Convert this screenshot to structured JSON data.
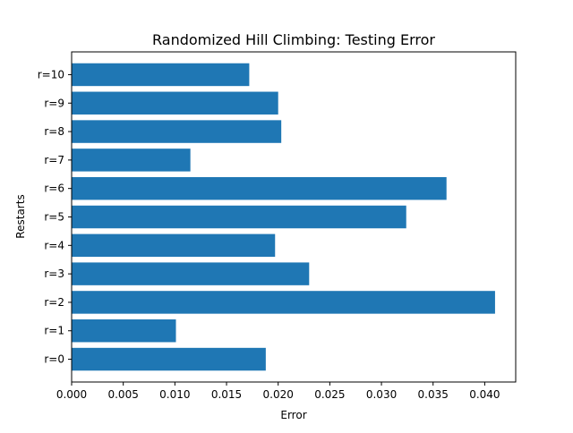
{
  "chart_data": {
    "type": "bar",
    "orientation": "horizontal",
    "title": "Randomized Hill Climbing: Testing Error",
    "xlabel": "Error",
    "ylabel": "Restarts",
    "categories": [
      "r=0",
      "r=1",
      "r=2",
      "r=3",
      "r=4",
      "r=5",
      "r=6",
      "r=7",
      "r=8",
      "r=9",
      "r=10"
    ],
    "values": [
      0.0188,
      0.0101,
      0.041,
      0.023,
      0.0197,
      0.0324,
      0.0363,
      0.0115,
      0.0203,
      0.02,
      0.0172
    ],
    "xlim": [
      0,
      0.043
    ],
    "xticks": [
      "0.000",
      "0.005",
      "0.010",
      "0.015",
      "0.020",
      "0.025",
      "0.030",
      "0.035",
      "0.040"
    ],
    "xtick_values": [
      0,
      0.005,
      0.01,
      0.015,
      0.02,
      0.025,
      0.03,
      0.035,
      0.04
    ],
    "grid": false,
    "bar_color": "#1f77b4"
  }
}
